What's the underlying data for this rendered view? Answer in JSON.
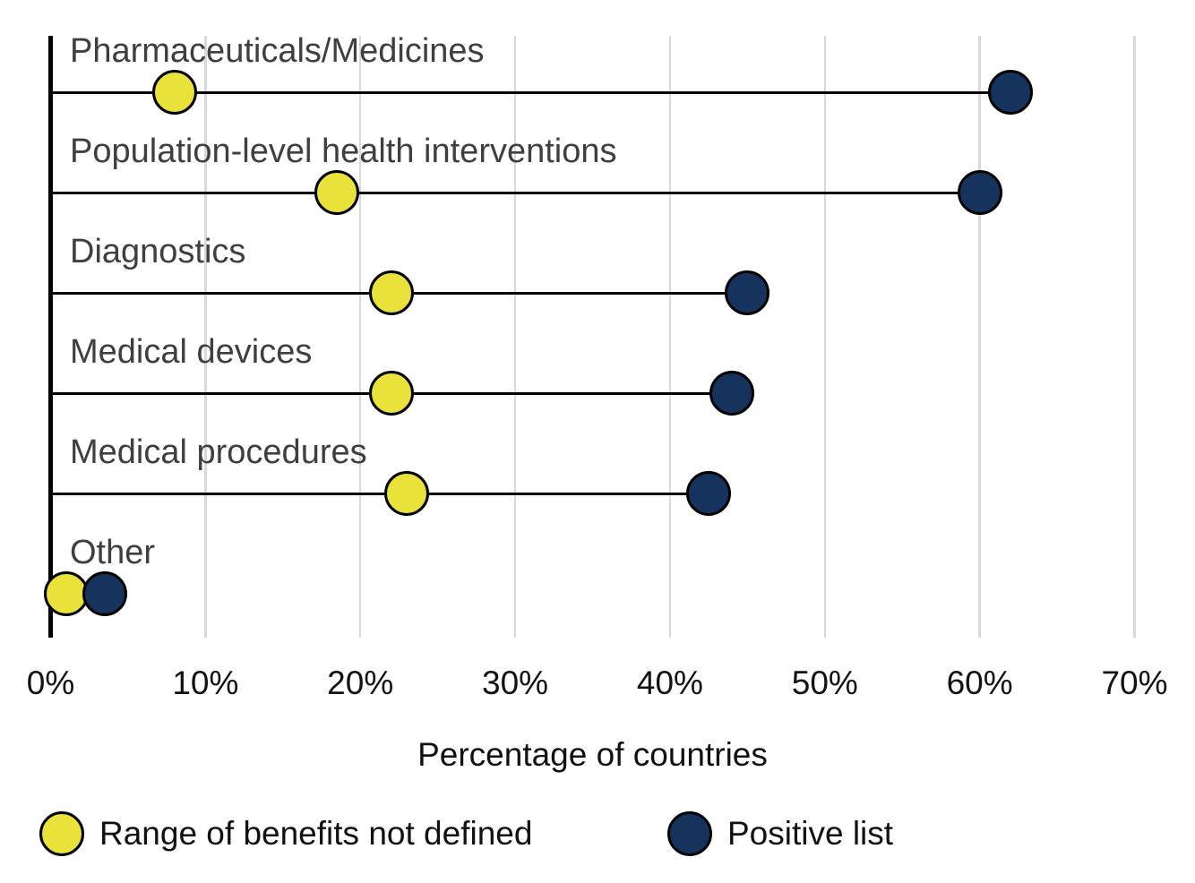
{
  "chart_data": {
    "type": "scatter",
    "subtype": "dumbbell-lollipop",
    "orientation": "horizontal",
    "categories": [
      "Pharmaceuticals/Medicines",
      "Population-level health interventions",
      "Diagnostics",
      "Medical devices",
      "Medical procedures",
      "Other"
    ],
    "series": [
      {
        "name": "Range of benefits not defined",
        "color": "#e8e23b",
        "values": [
          8,
          18.5,
          22,
          22,
          23,
          1
        ]
      },
      {
        "name": "Positive list",
        "color": "#16335e",
        "values": [
          62,
          60,
          45,
          44,
          42.5,
          3.5
        ]
      }
    ],
    "xlabel": "Percentage of countries",
    "x_ticks": [
      "0%",
      "10%",
      "20%",
      "30%",
      "40%",
      "50%",
      "60%",
      "70%"
    ],
    "xlim": [
      0,
      70
    ],
    "grid": "vertical-only",
    "legend_position": "bottom"
  },
  "colors": {
    "background": "#ffffff",
    "gridline": "#d9d9d9",
    "axis_and_stems": "#000000",
    "category_text": "#3f3f3f",
    "tick_text": "#111111",
    "series_not_defined": "#e8e23b",
    "series_positive_list": "#16335e"
  }
}
